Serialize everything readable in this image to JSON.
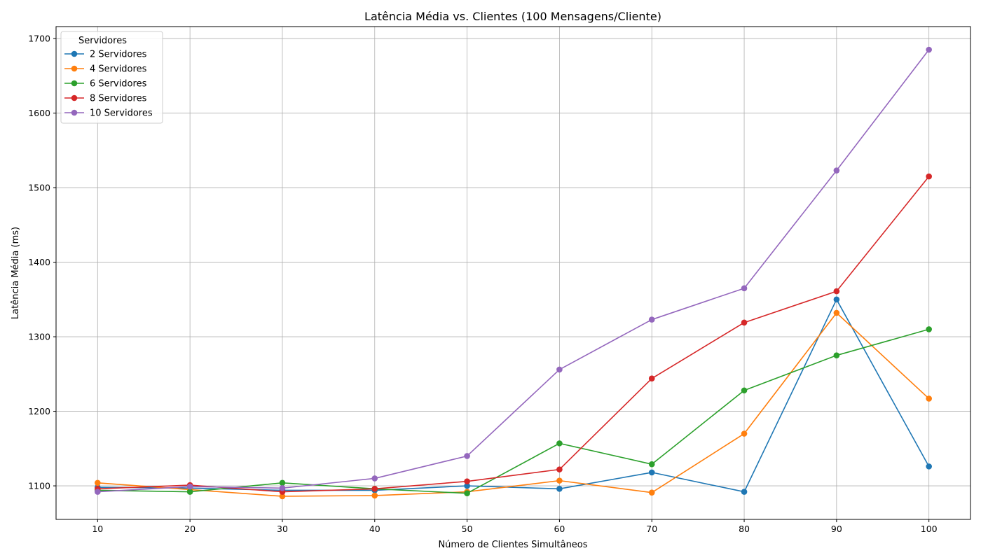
{
  "chart_data": {
    "type": "line",
    "title": "Latência Média vs. Clientes (100 Mensagens/Cliente)",
    "xlabel": "Número de Clientes Simultâneos",
    "ylabel": "Latência Média (ms)",
    "x": [
      10,
      20,
      30,
      40,
      50,
      60,
      70,
      80,
      90,
      100
    ],
    "x_ticks": [
      10,
      20,
      30,
      40,
      50,
      60,
      70,
      80,
      90,
      100
    ],
    "y_ticks": [
      1100,
      1200,
      1300,
      1400,
      1500,
      1600,
      1700
    ],
    "xlim": [
      5.5,
      104.5
    ],
    "ylim": [
      1055,
      1716
    ],
    "grid": true,
    "legend": {
      "title": "Servidores",
      "placement": "top-left"
    },
    "series": [
      {
        "name": "2 Servidores",
        "color": "#1f77b4",
        "values": [
          1098,
          1097,
          1094,
          1094,
          1100,
          1096,
          1118,
          1092,
          1350,
          1126
        ]
      },
      {
        "name": "4 Servidores",
        "color": "#ff7f0e",
        "values": [
          1104,
          1095,
          1086,
          1087,
          1092,
          1107,
          1091,
          1170,
          1332,
          1217
        ]
      },
      {
        "name": "6 Servidores",
        "color": "#2ca02c",
        "values": [
          1094,
          1092,
          1104,
          1096,
          1090,
          1157,
          1129,
          1228,
          1275,
          1310
        ]
      },
      {
        "name": "8 Servidores",
        "color": "#d62728",
        "values": [
          1096,
          1101,
          1092,
          1096,
          1106,
          1122,
          1244,
          1319,
          1361,
          1515
        ]
      },
      {
        "name": "10 Servidores",
        "color": "#9467bd",
        "values": [
          1092,
          1099,
          1097,
          1110,
          1140,
          1256,
          1323,
          1365,
          1523,
          1685
        ]
      }
    ]
  }
}
